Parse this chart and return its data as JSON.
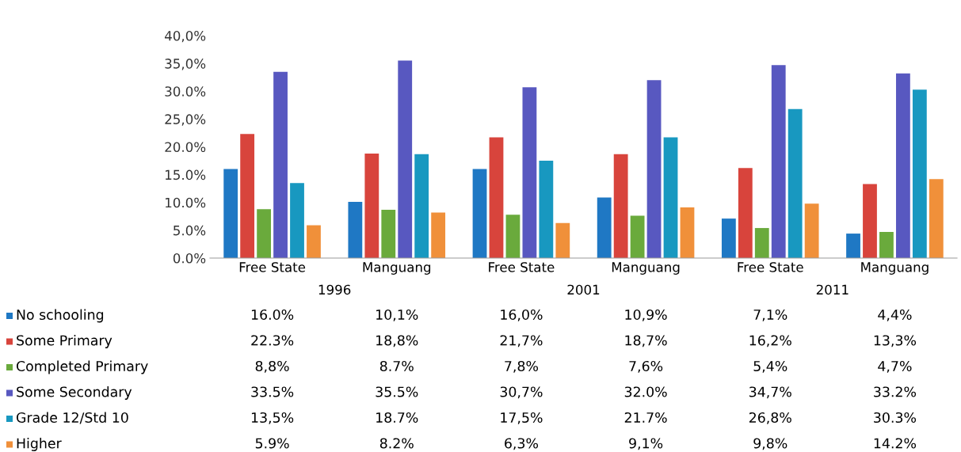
{
  "chart_data": {
    "type": "bar",
    "categories": [
      "Free State",
      "Manguang",
      "Free State",
      "Manguang",
      "Free State",
      "Manguang"
    ],
    "annotations": [
      "1996",
      "2001",
      "2011"
    ],
    "ylim": [
      0,
      40
    ],
    "yticks": [
      {
        "value": 0,
        "label": "0.0%"
      },
      {
        "value": 5,
        "label": "5.0%"
      },
      {
        "value": 10,
        "label": "10.0%"
      },
      {
        "value": 15,
        "label": "15.0%"
      },
      {
        "value": 20,
        "label": "20.0%"
      },
      {
        "value": 25,
        "label": "25,0%"
      },
      {
        "value": 30,
        "label": "30.0%"
      },
      {
        "value": 35,
        "label": "35,0%"
      },
      {
        "value": 40,
        "label": "40,0%"
      }
    ],
    "grid": false,
    "legend": "bottom left",
    "series": [
      {
        "name": "No schooling",
        "color": "#1f78c4",
        "values": [
          16.0,
          10.1,
          16.0,
          10.9,
          7.1,
          4.4
        ],
        "value_labels": [
          "16.0%",
          "10,1%",
          "16,0%",
          "10,9%",
          "7,1%",
          "4,4%"
        ]
      },
      {
        "name": "Some Primary",
        "color": "#d8443c",
        "values": [
          22.3,
          18.8,
          21.7,
          18.7,
          16.2,
          13.3
        ],
        "value_labels": [
          "22.3%",
          "18,8%",
          "21,7%",
          "18,7%",
          "16,2%",
          "13,3%"
        ]
      },
      {
        "name": "Completed Primary",
        "color": "#6aaa3c",
        "values": [
          8.8,
          8.7,
          7.8,
          7.6,
          5.4,
          4.7
        ],
        "value_labels": [
          "8,8%",
          "8.7%",
          "7,8%",
          "7,6%",
          "5,4%",
          "4,7%"
        ]
      },
      {
        "name": "Some Secondary",
        "color": "#5858c0",
        "values": [
          33.5,
          35.5,
          30.7,
          32.0,
          34.7,
          33.2
        ],
        "value_labels": [
          "33.5%",
          "35.5%",
          "30,7%",
          "32.0%",
          "34,7%",
          "33.2%"
        ]
      },
      {
        "name": "Grade 12/Std 10",
        "color": "#1898c0",
        "values": [
          13.5,
          18.7,
          17.5,
          21.7,
          26.8,
          30.3
        ],
        "value_labels": [
          "13,5%",
          "18.7%",
          "17,5%",
          "21.7%",
          "26,8%",
          "30.3%"
        ]
      },
      {
        "name": "Higher",
        "color": "#f0903a",
        "values": [
          5.9,
          8.2,
          6.3,
          9.1,
          9.8,
          14.2
        ],
        "value_labels": [
          "5.9%",
          "8.2%",
          "6,3%",
          "9,1%",
          "9,8%",
          "14.2%"
        ]
      }
    ]
  }
}
